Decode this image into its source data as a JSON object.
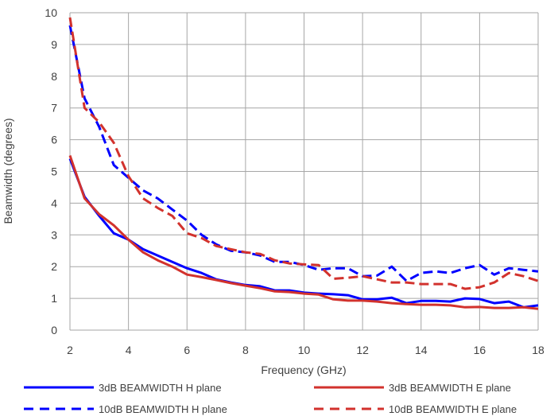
{
  "chart_data": {
    "type": "line",
    "title": "",
    "xlabel": "Frequency (GHz)",
    "ylabel": "Beamwidth (degrees)",
    "xlim": [
      2,
      18
    ],
    "ylim": [
      0,
      10
    ],
    "xticks": [
      2,
      4,
      6,
      8,
      10,
      12,
      14,
      16,
      18
    ],
    "yticks": [
      0,
      1,
      2,
      3,
      4,
      5,
      6,
      7,
      8,
      9,
      10
    ],
    "grid": true,
    "legend_position": "bottom",
    "series": [
      {
        "name": "3dB BEAMWIDTH H plane",
        "color": "#0000ff",
        "dash": "solid",
        "x": [
          2,
          2.5,
          3,
          3.5,
          4,
          4.5,
          5,
          5.5,
          6,
          6.5,
          7,
          7.5,
          8,
          8.5,
          9,
          9.5,
          10,
          10.5,
          11,
          11.5,
          12,
          12.5,
          13,
          13.5,
          14,
          14.5,
          15,
          15.5,
          16,
          16.5,
          17,
          17.5,
          18
        ],
        "values": [
          5.4,
          4.2,
          3.6,
          3.05,
          2.85,
          2.55,
          2.35,
          2.15,
          1.95,
          1.8,
          1.6,
          1.5,
          1.42,
          1.38,
          1.25,
          1.25,
          1.18,
          1.15,
          1.13,
          1.1,
          0.97,
          0.97,
          1.02,
          0.85,
          0.92,
          0.92,
          0.9,
          1.0,
          0.98,
          0.85,
          0.9,
          0.72,
          0.78
        ]
      },
      {
        "name": "3dB BEAMWIDTH E plane",
        "color": "#d2322d",
        "dash": "solid",
        "x": [
          2,
          2.5,
          3,
          3.5,
          4,
          4.5,
          5,
          5.5,
          6,
          6.5,
          7,
          7.5,
          8,
          8.5,
          9,
          9.5,
          10,
          10.5,
          11,
          11.5,
          12,
          12.5,
          13,
          13.5,
          14,
          14.5,
          15,
          15.5,
          16,
          16.5,
          17,
          17.5,
          18
        ],
        "values": [
          5.5,
          4.15,
          3.65,
          3.3,
          2.85,
          2.45,
          2.2,
          2.0,
          1.75,
          1.67,
          1.58,
          1.48,
          1.4,
          1.32,
          1.22,
          1.2,
          1.15,
          1.12,
          0.97,
          0.93,
          0.93,
          0.9,
          0.85,
          0.82,
          0.8,
          0.8,
          0.78,
          0.72,
          0.73,
          0.7,
          0.7,
          0.72,
          0.67
        ]
      },
      {
        "name": "10dB BEAMWIDTH H plane",
        "color": "#0000ff",
        "dash": "dashed",
        "x": [
          2,
          2.5,
          3,
          3.5,
          4,
          4.5,
          5,
          5.5,
          6,
          6.5,
          7,
          7.5,
          8,
          8.5,
          9,
          9.5,
          10,
          10.5,
          11,
          11.5,
          12,
          12.5,
          13,
          13.5,
          14,
          14.5,
          15,
          15.5,
          16,
          16.5,
          17,
          17.5,
          18
        ],
        "values": [
          9.6,
          7.3,
          6.4,
          5.2,
          4.8,
          4.4,
          4.15,
          3.8,
          3.45,
          3.0,
          2.7,
          2.5,
          2.45,
          2.35,
          2.15,
          2.15,
          2.05,
          1.9,
          1.95,
          1.95,
          1.7,
          1.72,
          2.0,
          1.55,
          1.8,
          1.85,
          1.8,
          1.95,
          2.05,
          1.75,
          1.95,
          1.9,
          1.85
        ]
      },
      {
        "name": "10dB BEAMWIDTH E plane",
        "color": "#d2322d",
        "dash": "dashed",
        "x": [
          2,
          2.5,
          3,
          3.5,
          4,
          4.5,
          5,
          5.5,
          6,
          6.5,
          7,
          7.5,
          8,
          8.5,
          9,
          9.5,
          10,
          10.5,
          11,
          11.5,
          12,
          12.5,
          13,
          13.5,
          14,
          14.5,
          15,
          15.5,
          16,
          16.5,
          17,
          17.5,
          18
        ],
        "values": [
          9.85,
          7.0,
          6.55,
          5.9,
          4.85,
          4.15,
          3.85,
          3.6,
          3.05,
          2.9,
          2.65,
          2.55,
          2.45,
          2.4,
          2.2,
          2.1,
          2.07,
          2.05,
          1.62,
          1.65,
          1.7,
          1.6,
          1.5,
          1.5,
          1.45,
          1.45,
          1.45,
          1.3,
          1.35,
          1.5,
          1.8,
          1.7,
          1.55
        ]
      }
    ]
  }
}
